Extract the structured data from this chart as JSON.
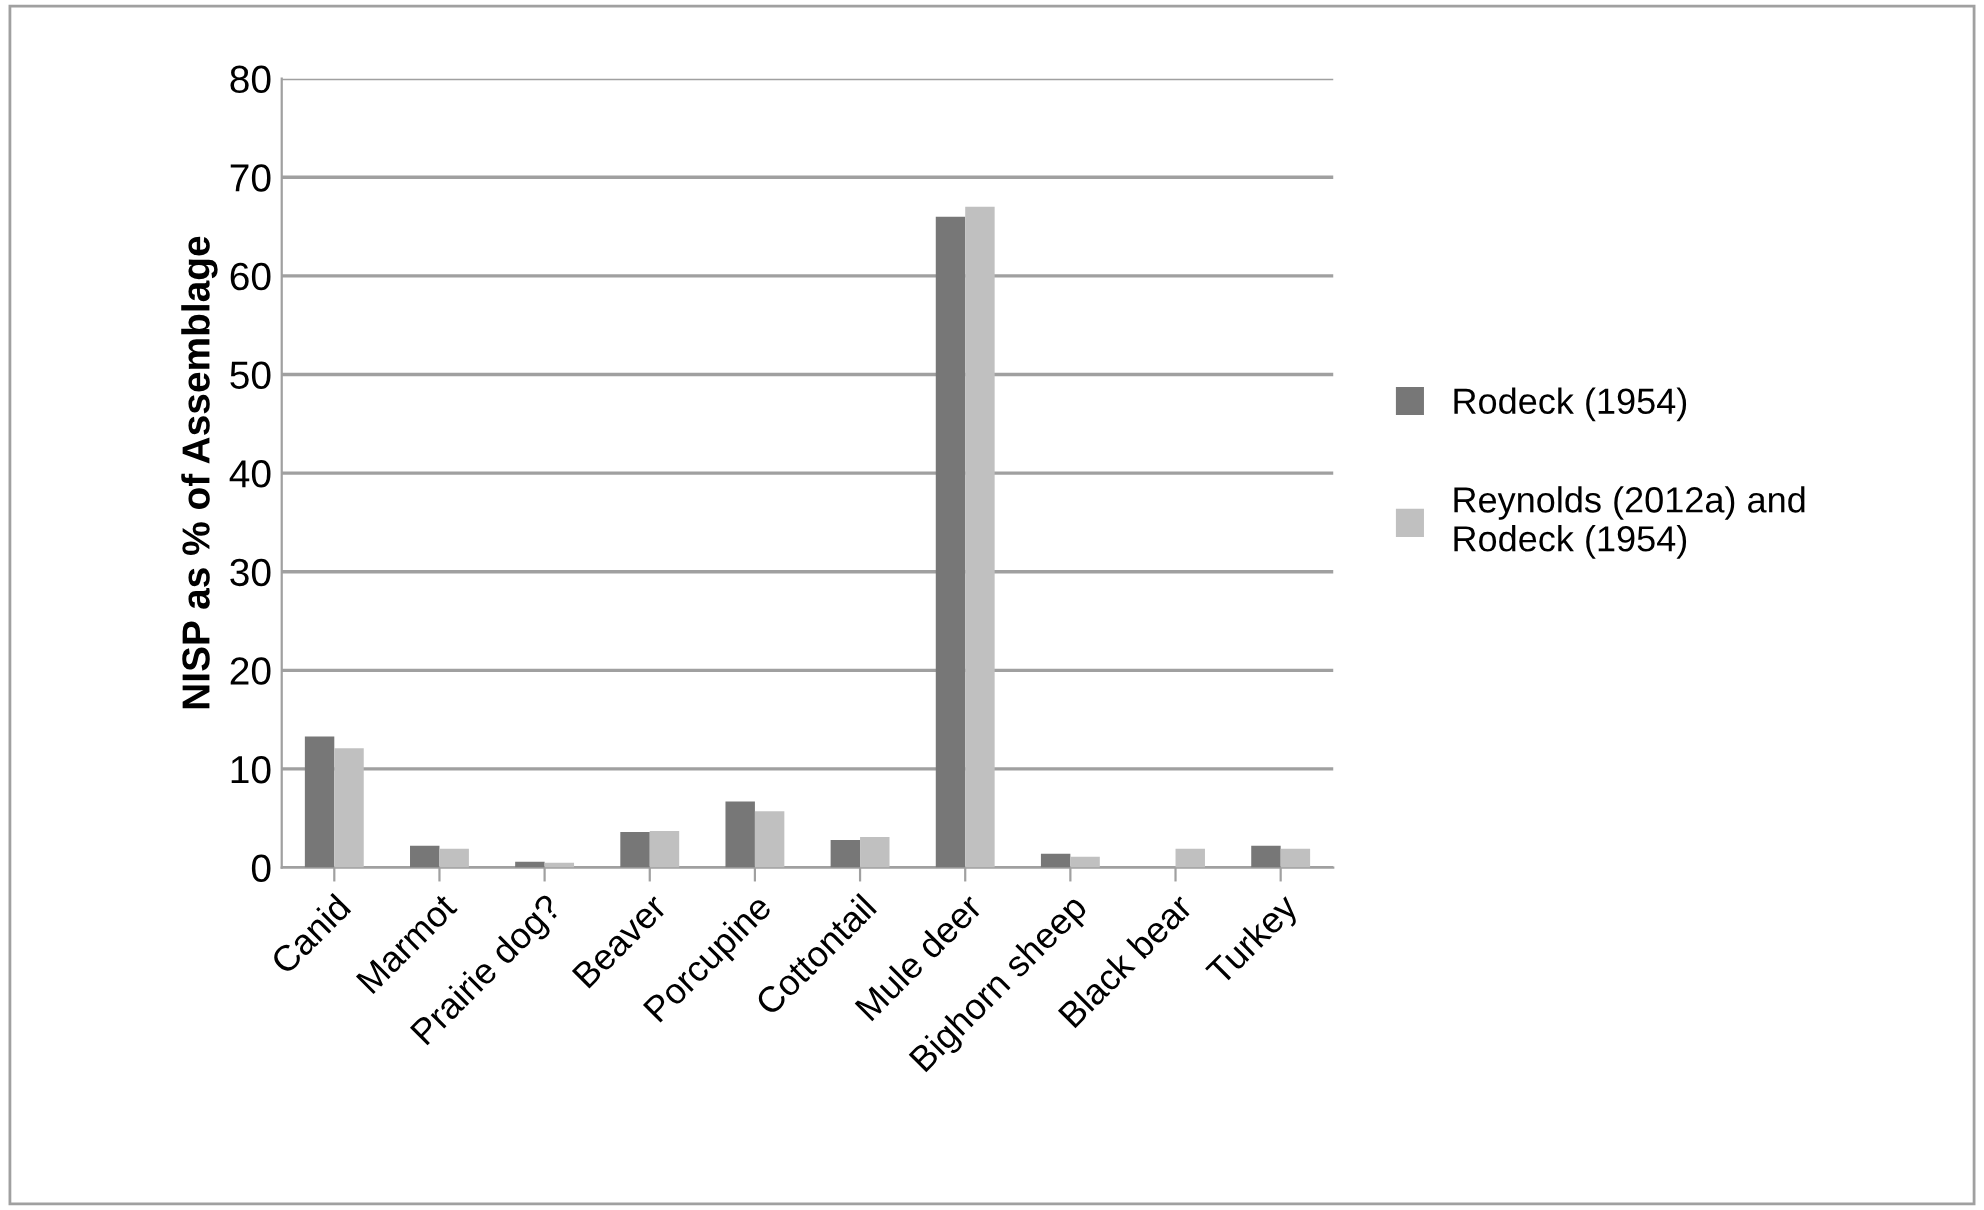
{
  "chart_data": {
    "type": "bar",
    "ylabel": "NISP as % of Assemblage",
    "categories": [
      "Canid",
      "Marmot",
      "Prairie dog?",
      "Beaver",
      "Porcupine",
      "Cottontail",
      "Mule deer",
      "Bighorn sheep",
      "Black bear",
      "Turkey"
    ],
    "series": [
      {
        "name": "Rodeck (1954)",
        "color": "#777777",
        "values": [
          13.3,
          2.2,
          0.6,
          3.6,
          6.7,
          2.8,
          66.0,
          1.4,
          0,
          2.2
        ]
      },
      {
        "name": "Reynolds (2012a) and Rodeck (1954)",
        "color": "#c0c0c0",
        "values": [
          12.1,
          1.9,
          0.5,
          3.7,
          5.7,
          3.1,
          67.0,
          1.1,
          1.9,
          1.9
        ]
      }
    ],
    "ylim": [
      0,
      80
    ],
    "yticks": [
      0,
      10,
      20,
      30,
      40,
      50,
      60,
      70,
      80
    ],
    "grid": "y",
    "legend": "right"
  }
}
